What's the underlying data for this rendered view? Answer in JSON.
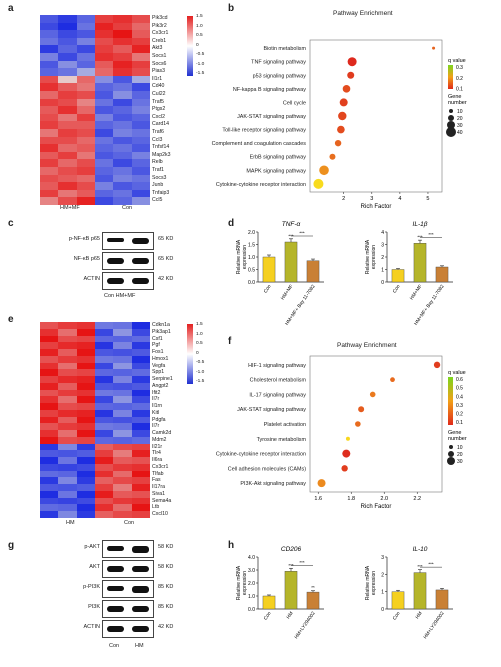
{
  "panel_a": {
    "label": "a",
    "genes": [
      "Pik3cd",
      "Pik3r2",
      "Cx3cr1",
      "Creb1",
      "Akt3",
      "Socs1",
      "Socs6",
      "Pias3",
      "Il1r1",
      "Cd40",
      "Cul22",
      "Traf5",
      "Ptgs2",
      "Cxcl2",
      "Card14",
      "Traf6",
      "Ccl3",
      "Tnfsf14",
      "Map2k3",
      "Relb",
      "Traf1",
      "Socs3",
      "Junb",
      "Tnfaip3",
      "Ccl5"
    ],
    "groups": [
      "HM+MF",
      "Con"
    ],
    "scale": [
      "1.5",
      "1.0",
      "0.5",
      "0",
      "-0.5",
      "-1.0",
      "-1.5"
    ],
    "heat": [
      [
        -1.2,
        -1.4,
        -1.1,
        1.2,
        1.3,
        1.1
      ],
      [
        -1.3,
        -1.5,
        -1.0,
        1.4,
        1.2,
        0.9
      ],
      [
        -1.1,
        -1.3,
        -1.2,
        1.3,
        1.5,
        1.0
      ],
      [
        -1.0,
        -1.2,
        -0.9,
        1.1,
        1.3,
        1.2
      ],
      [
        -1.4,
        -1.1,
        -1.3,
        1.2,
        1.0,
        1.4
      ],
      [
        -0.9,
        -1.3,
        -1.0,
        1.3,
        1.2,
        0.8
      ],
      [
        -1.2,
        -0.8,
        -1.1,
        1.0,
        1.4,
        1.2
      ],
      [
        -1.1,
        -1.0,
        -0.6,
        0.9,
        1.3,
        1.1
      ],
      [
        1.1,
        0.2,
        0.9,
        -0.8,
        -1.2,
        -0.6
      ],
      [
        1.3,
        1.0,
        0.8,
        -1.1,
        -1.0,
        -1.3
      ],
      [
        0.9,
        1.2,
        1.1,
        -1.2,
        -0.8,
        -1.1
      ],
      [
        1.2,
        1.1,
        0.7,
        -1.0,
        -1.3,
        -1.0
      ],
      [
        1.0,
        1.3,
        0.9,
        -1.2,
        -1.1,
        -0.9
      ],
      [
        1.1,
        0.8,
        1.2,
        -0.9,
        -1.2,
        -1.1
      ],
      [
        1.2,
        1.0,
        1.0,
        -1.1,
        -1.0,
        -1.2
      ],
      [
        0.8,
        1.2,
        1.1,
        -1.3,
        -0.9,
        -1.0
      ],
      [
        1.1,
        1.1,
        0.9,
        -1.0,
        -1.2,
        -1.1
      ],
      [
        1.3,
        0.9,
        1.0,
        -1.1,
        -1.0,
        -1.2
      ],
      [
        1.0,
        1.2,
        0.8,
        -1.2,
        -1.1,
        -0.9
      ],
      [
        1.2,
        0.9,
        1.1,
        -1.0,
        -1.3,
        -1.1
      ],
      [
        0.9,
        1.1,
        1.2,
        -1.1,
        -1.0,
        -1.2
      ],
      [
        1.1,
        1.0,
        0.9,
        -1.2,
        -0.9,
        -1.0
      ],
      [
        1.0,
        1.3,
        1.1,
        -0.9,
        -1.2,
        -1.1
      ],
      [
        1.2,
        0.8,
        1.0,
        -1.1,
        -1.0,
        -1.3
      ],
      [
        0.7,
        1.1,
        1.4,
        -1.3,
        -1.1,
        -0.8
      ]
    ]
  },
  "panel_b": {
    "label": "b",
    "chart_data": {
      "type": "scatter",
      "title": "Pathway Enrichment",
      "xlabel": "Rich Factor",
      "xlim": [
        0.8,
        5.5
      ],
      "xticks": [
        "2",
        "3",
        "4",
        "5"
      ],
      "points": [
        {
          "name": "Biotin metabolism",
          "x": 5.2,
          "q": 0.12,
          "n": 5
        },
        {
          "name": "TNF signaling pathway",
          "x": 2.3,
          "q": 0.02,
          "n": 35
        },
        {
          "name": "p53 signaling pathway",
          "x": 2.25,
          "q": 0.05,
          "n": 25
        },
        {
          "name": "NF-kappa B signaling pathway",
          "x": 2.1,
          "q": 0.08,
          "n": 28
        },
        {
          "name": "Cell cycle",
          "x": 2.0,
          "q": 0.06,
          "n": 30
        },
        {
          "name": "JAK-STAT signaling pathway",
          "x": 1.95,
          "q": 0.07,
          "n": 32
        },
        {
          "name": "Toll-like receptor signaling pathway",
          "x": 1.9,
          "q": 0.08,
          "n": 28
        },
        {
          "name": "Complement and coagulation cascades",
          "x": 1.8,
          "q": 0.12,
          "n": 22
        },
        {
          "name": "ErbB signaling pathway",
          "x": 1.6,
          "q": 0.14,
          "n": 20
        },
        {
          "name": "MAPK signaling pathway",
          "x": 1.3,
          "q": 0.2,
          "n": 38
        },
        {
          "name": "Cytokine-cytokine receptor interaction",
          "x": 1.1,
          "q": 0.33,
          "n": 40
        }
      ],
      "legend_q_title": "q value",
      "legend_q": [
        "0.3",
        "0.2",
        "0.1"
      ],
      "legend_n_title": "Gene number",
      "legend_n": [
        "10",
        "20",
        "30",
        "40"
      ]
    }
  },
  "panel_c": {
    "label": "c",
    "rows": [
      {
        "name": "p-NF-κB p65",
        "kd": "65 KD"
      },
      {
        "name": "NF-κB p65",
        "kd": "65 KD"
      },
      {
        "name": "ACTIN",
        "kd": "42 KD"
      }
    ],
    "lanes": "Con HM+MF"
  },
  "panel_d": {
    "label": "d",
    "charts": [
      {
        "type": "bar",
        "title": "TNF-α",
        "ylabel": "Relative mRNA expression",
        "yticks": [
          "0.0",
          "0.5",
          "1.0",
          "1.5",
          "2.0"
        ],
        "ylim": [
          0,
          2.0
        ],
        "categories": [
          "Con",
          "HM+MF",
          "HM+MF+ Bay 11-7082"
        ],
        "values": [
          1.0,
          1.6,
          0.85
        ],
        "colors": [
          "#f5d020",
          "#b5b52a",
          "#c98035"
        ],
        "sig": "***",
        "sig_top": "***"
      },
      {
        "type": "bar",
        "title": "IL-1β",
        "ylabel": "Relative mRNA expression",
        "yticks": [
          "0",
          "1",
          "2",
          "3",
          "4"
        ],
        "ylim": [
          0,
          4
        ],
        "categories": [
          "Con",
          "HM+MF",
          "HM+MF+ Bay 11-7082"
        ],
        "values": [
          1.0,
          3.1,
          1.2
        ],
        "colors": [
          "#f5d020",
          "#b5b52a",
          "#c98035"
        ],
        "sig": "***",
        "sig_top": "***"
      }
    ]
  },
  "panel_e": {
    "label": "e",
    "genes": [
      "Cdkn1a",
      "Pik3ap1",
      "Csf1",
      "Pgf",
      "Fos1",
      "Hmox1",
      "Vegfa",
      "Spp1",
      "Serpine1",
      "Angpt2",
      "Ifit2",
      "Il7r",
      "Il1rn",
      "Kitl",
      "Pdgfa",
      "Il7r",
      "Camk2d",
      "Mdm2",
      "Il21r",
      "Tlr4",
      "Il6ra",
      "Cx3cr1",
      "Tlfab",
      "Fas",
      "Il17ra",
      "Siva1",
      "Sema4a",
      "Ltb",
      "Cxcl10"
    ],
    "groups": [
      "HM",
      "Con"
    ],
    "scale": [
      "1.5",
      "1.0",
      "0.5",
      "0",
      "-0.5",
      "-1.0",
      "-1.5"
    ]
  },
  "panel_f": {
    "label": "f",
    "chart_data": {
      "type": "scatter",
      "title": "Pathway Enrichment",
      "xlabel": "Rich Factor",
      "xlim": [
        1.55,
        2.35
      ],
      "xticks": [
        "1.6",
        "1.8",
        "2.0",
        "2.2"
      ],
      "points": [
        {
          "name": "HIF-1 signaling pathway",
          "x": 2.32,
          "q": 0.1,
          "n": 22
        },
        {
          "name": "Cholesterol metabolism",
          "x": 2.05,
          "q": 0.25,
          "n": 14
        },
        {
          "name": "IL-17 signaling pathway",
          "x": 1.93,
          "q": 0.3,
          "n": 18
        },
        {
          "name": "JAK-STAT signaling pathway",
          "x": 1.86,
          "q": 0.2,
          "n": 20
        },
        {
          "name": "Platelet activation",
          "x": 1.84,
          "q": 0.25,
          "n": 18
        },
        {
          "name": "Tyrosine metabolism",
          "x": 1.78,
          "q": 0.6,
          "n": 10
        },
        {
          "name": "Cytokine-cytokine receptor interaction",
          "x": 1.77,
          "q": 0.05,
          "n": 30
        },
        {
          "name": "Cell adhesion molecules (CAMs)",
          "x": 1.76,
          "q": 0.1,
          "n": 22
        },
        {
          "name": "PI3K-Akt signaling pathway",
          "x": 1.62,
          "q": 0.35,
          "n": 30
        }
      ],
      "legend_q_title": "q value",
      "legend_q": [
        "0.6",
        "0.5",
        "0.4",
        "0.3",
        "0.2",
        "0.1"
      ],
      "legend_n_title": "Gene number",
      "legend_n": [
        "10",
        "20",
        "30"
      ]
    }
  },
  "panel_g": {
    "label": "g",
    "rows": [
      {
        "name": "p-AKT",
        "kd": "58 KD"
      },
      {
        "name": "AKT",
        "kd": "58 KD"
      },
      {
        "name": "p-PI3K",
        "kd": "85 KD"
      },
      {
        "name": "PI3K",
        "kd": "85 KD"
      },
      {
        "name": "ACTIN",
        "kd": "42 KD"
      }
    ],
    "lanes": [
      "Con",
      "HM"
    ]
  },
  "panel_h": {
    "label": "h",
    "charts": [
      {
        "type": "bar",
        "title": "CD206",
        "ylabel": "Relative mRNA expression",
        "yticks": [
          "0.0",
          "1.0",
          "2.0",
          "3.0",
          "4.0"
        ],
        "ylim": [
          0,
          4
        ],
        "categories": [
          "Con",
          "HM",
          "HM+LY294002"
        ],
        "values": [
          1.0,
          2.9,
          1.3
        ],
        "colors": [
          "#f5d020",
          "#b5b52a",
          "#c98035"
        ],
        "sig": "***",
        "sig_top": "***",
        "sig3": "**"
      },
      {
        "type": "bar",
        "title": "IL-10",
        "ylabel": "Relative mRNA expression",
        "yticks": [
          "0",
          "1",
          "2",
          "3"
        ],
        "ylim": [
          0,
          3
        ],
        "categories": [
          "Con",
          "HM",
          "HM+LY294002"
        ],
        "values": [
          1.0,
          2.1,
          1.1
        ],
        "colors": [
          "#f5d020",
          "#b5b52a",
          "#c98035"
        ],
        "sig": "***",
        "sig_top": "***"
      }
    ]
  }
}
